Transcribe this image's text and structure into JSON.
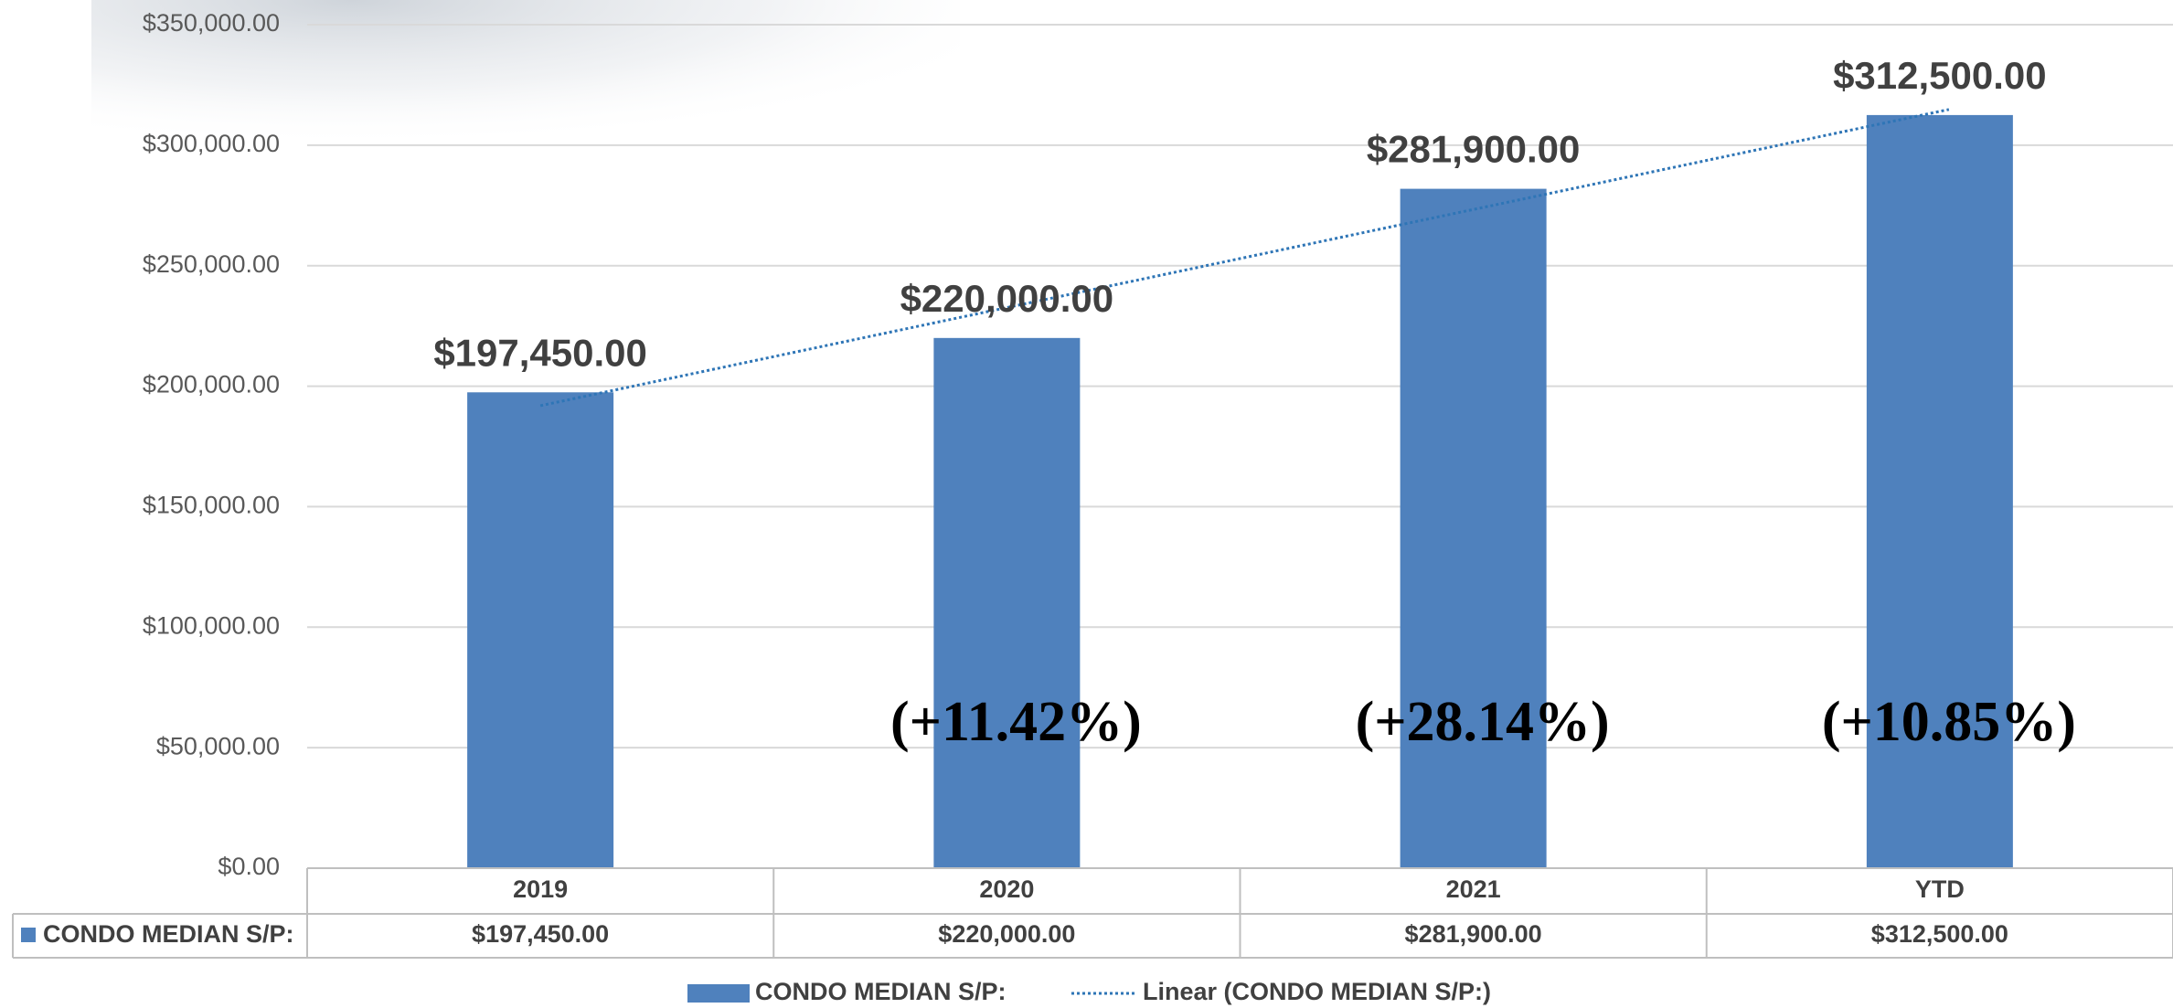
{
  "chart_data": {
    "type": "bar",
    "categories": [
      "2019",
      "2020",
      "2021",
      "YTD"
    ],
    "series": [
      {
        "name": "CONDO MEDIAN S/P:",
        "color": "#4f81bd",
        "values": [
          197450,
          220000,
          281900,
          312500
        ],
        "value_labels": [
          "$197,450.00",
          "$220,000.00",
          "$281,900.00",
          "$312,500.00"
        ]
      }
    ],
    "trendline": {
      "name": "Linear (CONDO MEDIAN S/P:)",
      "style": "dotted",
      "color": "#2e75b6"
    },
    "annotations": [
      null,
      "(+11.42%)",
      "(+28.14%)",
      "(+10.85%)"
    ],
    "ylim": [
      0,
      350000
    ],
    "yticks": [
      {
        "value": 0,
        "label": "$0.00"
      },
      {
        "value": 50000,
        "label": "$50,000.00"
      },
      {
        "value": 100000,
        "label": "$100,000.00"
      },
      {
        "value": 150000,
        "label": "$150,000.00"
      },
      {
        "value": 200000,
        "label": "$200,000.00"
      },
      {
        "value": 250000,
        "label": "$250,000.00"
      },
      {
        "value": 300000,
        "label": "$300,000.00"
      },
      {
        "value": 350000,
        "label": "$350,000.00"
      }
    ],
    "grid": true,
    "data_table": true
  }
}
